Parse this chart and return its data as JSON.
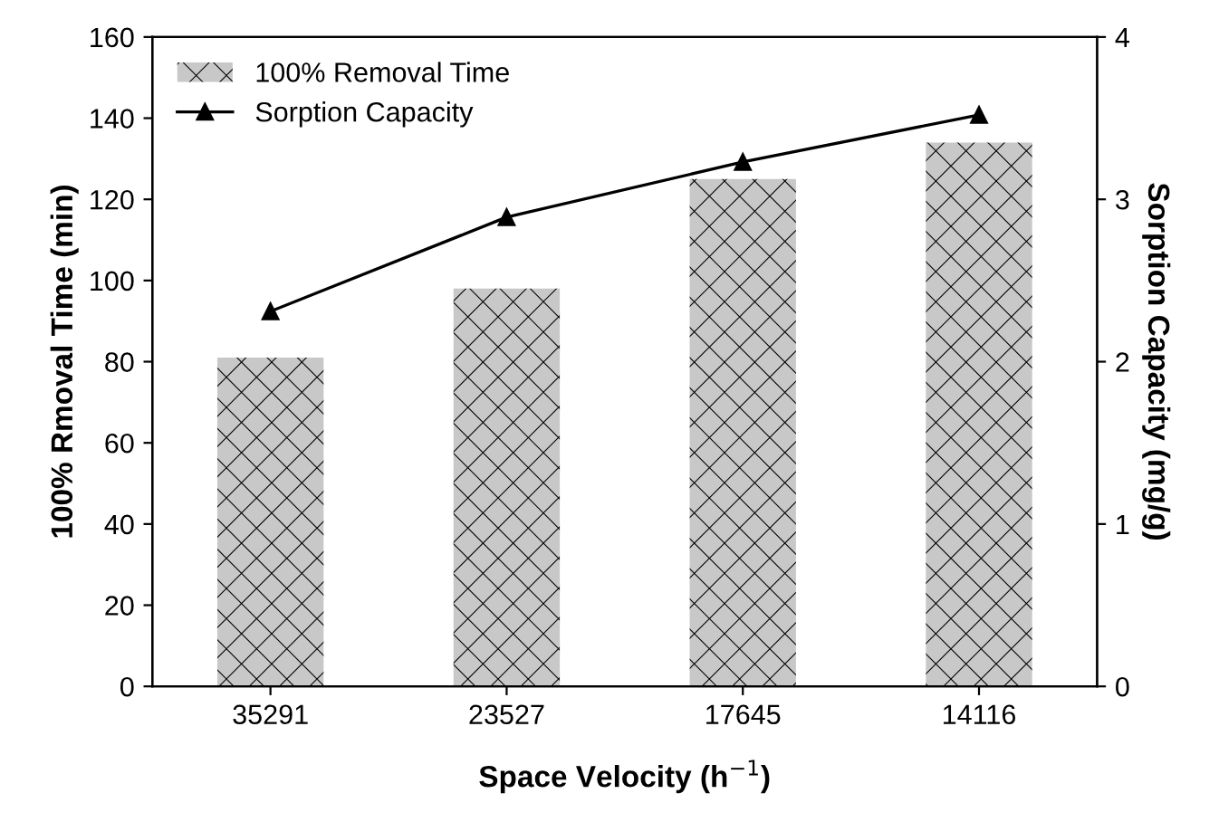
{
  "chart_data": {
    "type": "bar",
    "xlabel": "Space Velocity (h$^{−1}$)",
    "ylabel": "100% Rmoval Time (min)",
    "y2label": "Sorption Capacity (mg/g)",
    "categories": [
      "35291",
      "23527",
      "17645",
      "14116"
    ],
    "series": [
      {
        "name": "100% Removal Time",
        "type": "bar",
        "color": "#c8c8c8",
        "values": [
          81,
          98,
          125,
          134
        ]
      },
      {
        "name": "Sorption Capacity",
        "type": "line",
        "axis": "y2",
        "color": "#000000",
        "marker": "triangle",
        "values": [
          2.31,
          2.89,
          3.23,
          3.52
        ]
      }
    ],
    "ylim": [
      0,
      160
    ],
    "yticks": [
      0,
      20,
      40,
      60,
      80,
      100,
      120,
      140,
      160
    ],
    "y2lim": [
      0,
      4
    ],
    "y2ticks": [
      0,
      1,
      2,
      3,
      4
    ],
    "legend": "top left",
    "grid": false
  }
}
